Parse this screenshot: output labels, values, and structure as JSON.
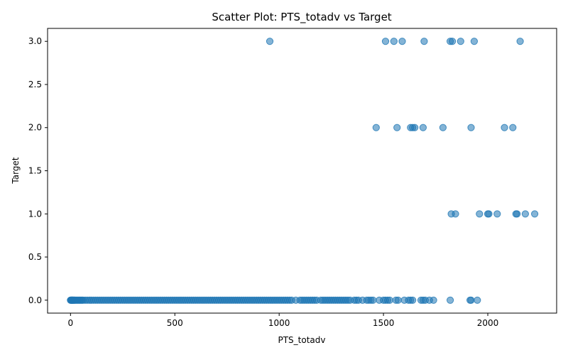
{
  "chart_data": {
    "type": "scatter",
    "title": "Scatter Plot: PTS_totadv vs Target",
    "xlabel": "PTS_totadv",
    "ylabel": "Target",
    "xlim": [
      -110,
      2330
    ],
    "ylim": [
      -0.15,
      3.15
    ],
    "xticks": [
      0,
      500,
      1000,
      1500,
      2000
    ],
    "yticks": [
      0.0,
      0.5,
      1.0,
      1.5,
      2.0,
      2.5,
      3.0
    ],
    "xtick_labels": [
      "0",
      "500",
      "1000",
      "1500",
      "2000"
    ],
    "ytick_labels": [
      "0.0",
      "0.5",
      "1.0",
      "1.5",
      "2.0",
      "2.5",
      "3.0"
    ],
    "grid": false,
    "marker_color": "#1f77b4",
    "marker_alpha": 0.55,
    "series": [
      {
        "x": [
          0,
          2,
          4,
          6,
          8,
          10,
          12,
          15,
          18,
          20,
          25,
          30,
          35,
          40,
          45,
          50,
          55,
          60,
          70,
          80,
          90,
          100,
          110,
          120,
          130,
          140,
          150,
          160,
          170,
          180,
          190,
          200,
          210,
          220,
          230,
          240,
          250,
          260,
          270,
          280,
          290,
          300,
          310,
          320,
          330,
          340,
          350,
          360,
          370,
          380,
          390,
          400,
          410,
          420,
          430,
          440,
          450,
          460,
          470,
          480,
          490,
          500,
          510,
          520,
          530,
          540,
          550,
          560,
          570,
          580,
          590,
          600,
          610,
          620,
          630,
          640,
          650,
          660,
          670,
          680,
          690,
          700,
          710,
          720,
          730,
          740,
          750,
          760,
          770,
          780,
          790,
          800,
          810,
          820,
          830,
          840,
          850,
          860,
          870,
          880,
          890,
          900,
          910,
          920,
          930,
          940,
          950,
          960,
          970,
          980,
          990,
          1000,
          1010,
          1020,
          1030,
          1040,
          1050,
          1060,
          1080,
          1100,
          1110,
          1120,
          1130,
          1140,
          1150,
          1160,
          1170,
          1180,
          1200,
          1210,
          1220,
          1230,
          1240,
          1250,
          1260,
          1270,
          1280,
          1290,
          1300,
          1310,
          1320,
          1330,
          1340,
          1360,
          1370,
          1380,
          1400,
          1420,
          1430,
          1440,
          1450,
          1480,
          1500,
          1510,
          1520,
          1530,
          1560,
          1570,
          1600,
          1620,
          1630,
          1640,
          1680,
          1690,
          1700,
          1720,
          1740,
          1820,
          1915,
          1920,
          1950,
          955,
          1510,
          1550,
          1590,
          1695,
          1820,
          1830,
          1870,
          1935,
          2155,
          1465,
          1565,
          1630,
          1640,
          1650,
          1690,
          1785,
          1920,
          2080,
          2120,
          1825,
          1845,
          1960,
          2000,
          2005,
          2045,
          2135,
          2140,
          2180,
          2225
        ],
        "y": [
          0,
          0,
          0,
          0,
          0,
          0,
          0,
          0,
          0,
          0,
          0,
          0,
          0,
          0,
          0,
          0,
          0,
          0,
          0,
          0,
          0,
          0,
          0,
          0,
          0,
          0,
          0,
          0,
          0,
          0,
          0,
          0,
          0,
          0,
          0,
          0,
          0,
          0,
          0,
          0,
          0,
          0,
          0,
          0,
          0,
          0,
          0,
          0,
          0,
          0,
          0,
          0,
          0,
          0,
          0,
          0,
          0,
          0,
          0,
          0,
          0,
          0,
          0,
          0,
          0,
          0,
          0,
          0,
          0,
          0,
          0,
          0,
          0,
          0,
          0,
          0,
          0,
          0,
          0,
          0,
          0,
          0,
          0,
          0,
          0,
          0,
          0,
          0,
          0,
          0,
          0,
          0,
          0,
          0,
          0,
          0,
          0,
          0,
          0,
          0,
          0,
          0,
          0,
          0,
          0,
          0,
          0,
          0,
          0,
          0,
          0,
          0,
          0,
          0,
          0,
          0,
          0,
          0,
          0,
          0,
          0,
          0,
          0,
          0,
          0,
          0,
          0,
          0,
          0,
          0,
          0,
          0,
          0,
          0,
          0,
          0,
          0,
          0,
          0,
          0,
          0,
          0,
          0,
          0,
          0,
          0,
          0,
          0,
          0,
          0,
          0,
          0,
          0,
          0,
          0,
          0,
          0,
          0,
          0,
          0,
          0,
          0,
          0,
          0,
          0,
          0,
          0,
          0,
          0,
          0,
          0,
          3,
          3,
          3,
          3,
          3,
          3,
          3,
          3,
          3,
          3,
          2,
          2,
          2,
          2,
          2,
          2,
          2,
          2,
          2,
          2,
          1,
          1,
          1,
          1,
          1,
          1,
          1,
          1,
          1,
          1
        ]
      }
    ]
  }
}
